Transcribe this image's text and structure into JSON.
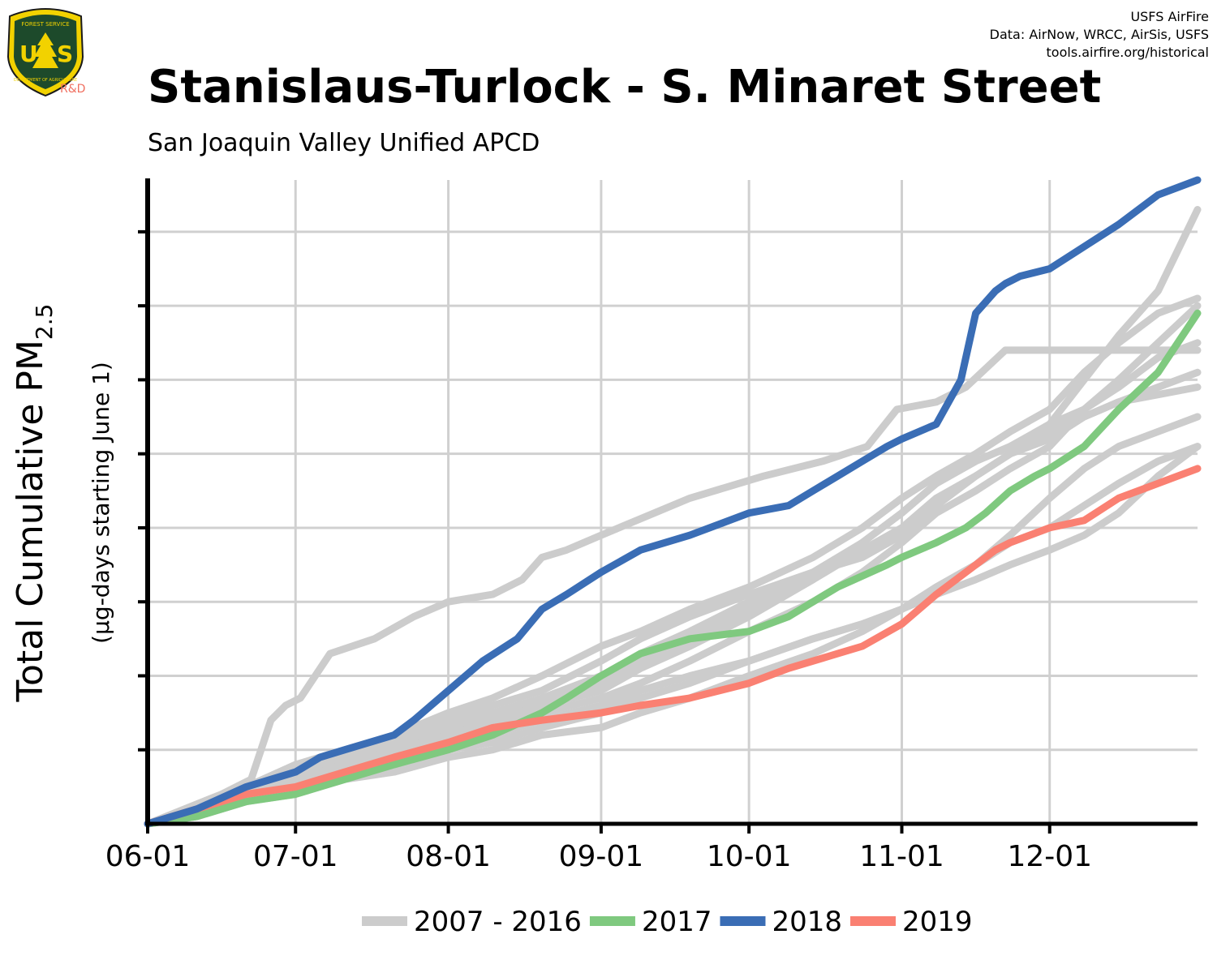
{
  "logo": {
    "text_top": "FOREST SERVICE",
    "text_main": "US",
    "text_bottom": "DEPARTMENT OF AGRICULTURE",
    "rd": "R&D"
  },
  "credits": {
    "line1": "USFS AirFire",
    "line2": "Data: AirNow, WRCC, AirSis, USFS",
    "line3": "tools.airfire.org/historical"
  },
  "colors": {
    "historical": "#cccccc",
    "y2017": "#7fc97f",
    "y2018": "#3a6db5",
    "y2019": "#fa8072",
    "grid": "#d0d0d0",
    "axis": "#000000"
  },
  "chart_data": {
    "type": "line",
    "title": "Stanislaus-Turlock - S. Minaret Street",
    "subtitle": "San Joaquin Valley Unified APCD",
    "ylabel_main": "Total Cumulative PM",
    "ylabel_sub": "2.5",
    "ylabel_units": "(µg-days starting June 1)",
    "x_tick_labels": [
      "06-01",
      "07-01",
      "08-01",
      "09-01",
      "10-01",
      "11-01",
      "12-01"
    ],
    "x_tick_days": [
      0,
      30,
      61,
      92,
      122,
      153,
      183
    ],
    "xlim": [
      0,
      213
    ],
    "ylim": [
      0,
      8.7
    ],
    "y_grid_values": [
      1,
      2,
      3,
      4,
      5,
      6,
      7,
      8
    ],
    "legend_position": "bottom",
    "legend": [
      {
        "label": "2007 - 2016",
        "key": "historical"
      },
      {
        "label": "2017",
        "key": "y2017"
      },
      {
        "label": "2018",
        "key": "y2018"
      },
      {
        "label": "2019",
        "key": "y2019"
      }
    ],
    "series": [
      {
        "name": "2007 - 2016",
        "group": "historical",
        "x": [
          0,
          15,
          21,
          25,
          28,
          31,
          37,
          46,
          54,
          61,
          70,
          76,
          80,
          85,
          92,
          110,
          125,
          137,
          146,
          152,
          160,
          166,
          174,
          183,
          190,
          197,
          205,
          213
        ],
        "y": [
          0,
          0.4,
          0.6,
          1.4,
          1.6,
          1.7,
          2.3,
          2.5,
          2.8,
          3.0,
          3.1,
          3.3,
          3.6,
          3.7,
          3.9,
          4.4,
          4.7,
          4.9,
          5.1,
          5.6,
          5.7,
          5.9,
          6.4,
          6.4,
          6.4,
          6.4,
          6.4,
          6.4
        ]
      },
      {
        "name": "2007 - 2016",
        "group": "historical",
        "x": [
          0,
          10,
          20,
          30,
          40,
          50,
          61,
          70,
          80,
          92,
          100,
          110,
          122,
          135,
          145,
          153,
          160,
          168,
          175,
          183,
          190,
          197,
          205,
          213
        ],
        "y": [
          0,
          0.2,
          0.5,
          0.7,
          0.9,
          1.1,
          1.4,
          1.6,
          1.8,
          2.2,
          2.5,
          2.8,
          3.1,
          3.4,
          3.6,
          3.9,
          4.3,
          4.7,
          5.0,
          5.4,
          6.0,
          6.6,
          7.2,
          8.3
        ]
      },
      {
        "name": "2007 - 2016",
        "group": "historical",
        "x": [
          0,
          10,
          20,
          30,
          40,
          50,
          61,
          70,
          80,
          92,
          100,
          110,
          122,
          135,
          145,
          153,
          160,
          168,
          175,
          183,
          190,
          197,
          205,
          213
        ],
        "y": [
          0,
          0.2,
          0.5,
          0.8,
          1.0,
          1.2,
          1.5,
          1.7,
          2.0,
          2.4,
          2.6,
          2.9,
          3.2,
          3.6,
          4.0,
          4.4,
          4.7,
          5.0,
          5.3,
          5.6,
          6.1,
          6.5,
          6.9,
          7.1
        ]
      },
      {
        "name": "2007 - 2016",
        "group": "historical",
        "x": [
          0,
          10,
          20,
          30,
          40,
          50,
          61,
          70,
          80,
          92,
          100,
          110,
          122,
          135,
          145,
          153,
          160,
          168,
          175,
          183,
          190,
          197,
          205,
          213
        ],
        "y": [
          0,
          0.2,
          0.4,
          0.7,
          0.9,
          1.1,
          1.3,
          1.5,
          1.7,
          2.0,
          2.3,
          2.6,
          3.0,
          3.4,
          3.8,
          4.2,
          4.6,
          4.9,
          5.1,
          5.4,
          5.6,
          5.9,
          6.3,
          6.5
        ]
      },
      {
        "name": "2007 - 2016",
        "group": "historical",
        "x": [
          0,
          10,
          20,
          30,
          40,
          50,
          61,
          70,
          80,
          92,
          100,
          110,
          122,
          135,
          145,
          153,
          160,
          168,
          175,
          183,
          190,
          197,
          205,
          213
        ],
        "y": [
          0,
          0.2,
          0.4,
          0.6,
          0.8,
          1.0,
          1.2,
          1.4,
          1.6,
          1.8,
          2.1,
          2.4,
          2.8,
          3.3,
          3.8,
          4.2,
          4.6,
          4.9,
          5.1,
          5.3,
          5.5,
          5.7,
          5.9,
          6.1
        ]
      },
      {
        "name": "2007 - 2016",
        "group": "historical",
        "x": [
          0,
          10,
          20,
          30,
          40,
          50,
          61,
          70,
          80,
          92,
          100,
          110,
          122,
          135,
          145,
          153,
          160,
          168,
          175,
          183,
          190,
          197,
          205,
          213
        ],
        "y": [
          0,
          0.2,
          0.4,
          0.6,
          0.8,
          1.0,
          1.2,
          1.4,
          1.6,
          1.9,
          2.2,
          2.5,
          2.9,
          3.3,
          3.7,
          4.0,
          4.4,
          4.7,
          5.0,
          5.2,
          5.5,
          5.7,
          5.8,
          5.9
        ]
      },
      {
        "name": "2007 - 2016",
        "group": "historical",
        "x": [
          0,
          10,
          20,
          30,
          40,
          50,
          61,
          70,
          80,
          92,
          100,
          110,
          122,
          135,
          145,
          153,
          160,
          168,
          175,
          183,
          190,
          197,
          205,
          213
        ],
        "y": [
          0,
          0.2,
          0.4,
          0.6,
          0.8,
          1.0,
          1.2,
          1.3,
          1.5,
          1.7,
          1.9,
          2.2,
          2.6,
          3.0,
          3.4,
          3.8,
          4.2,
          4.5,
          4.8,
          5.1,
          5.6,
          6.0,
          6.5,
          7.0
        ]
      },
      {
        "name": "2007 - 2016",
        "group": "historical",
        "x": [
          0,
          10,
          20,
          30,
          40,
          50,
          61,
          70,
          80,
          92,
          100,
          110,
          122,
          135,
          145,
          153,
          160,
          168,
          175,
          183,
          190,
          197,
          205,
          213
        ],
        "y": [
          0,
          0.1,
          0.3,
          0.5,
          0.7,
          0.8,
          1.0,
          1.1,
          1.3,
          1.5,
          1.7,
          1.9,
          2.2,
          2.5,
          2.7,
          2.9,
          3.2,
          3.5,
          3.9,
          4.4,
          4.8,
          5.1,
          5.3,
          5.5
        ]
      },
      {
        "name": "2007 - 2016",
        "group": "historical",
        "x": [
          0,
          10,
          20,
          30,
          40,
          50,
          61,
          70,
          80,
          92,
          100,
          110,
          122,
          135,
          145,
          153,
          160,
          168,
          175,
          183,
          190,
          197,
          205,
          213
        ],
        "y": [
          0,
          0.1,
          0.3,
          0.5,
          0.7,
          0.8,
          1.0,
          1.2,
          1.4,
          1.6,
          1.8,
          2.0,
          2.2,
          2.5,
          2.7,
          2.9,
          3.2,
          3.5,
          3.8,
          4.0,
          4.3,
          4.6,
          4.9,
          5.1
        ]
      },
      {
        "name": "2007 - 2016",
        "group": "historical",
        "x": [
          0,
          10,
          20,
          30,
          40,
          50,
          61,
          70,
          80,
          92,
          100,
          110,
          122,
          135,
          145,
          153,
          160,
          168,
          175,
          183,
          190,
          197,
          205,
          213
        ],
        "y": [
          0,
          0.1,
          0.3,
          0.4,
          0.6,
          0.7,
          0.9,
          1.0,
          1.2,
          1.3,
          1.5,
          1.7,
          2.0,
          2.3,
          2.6,
          2.9,
          3.1,
          3.3,
          3.5,
          3.7,
          3.9,
          4.2,
          4.7,
          5.1
        ]
      },
      {
        "name": "2017",
        "group": "y2017",
        "x": [
          0,
          10,
          20,
          30,
          40,
          50,
          61,
          70,
          80,
          85,
          92,
          100,
          110,
          122,
          130,
          135,
          140,
          150,
          153,
          160,
          166,
          170,
          175,
          180,
          183,
          190,
          197,
          205,
          213
        ],
        "y": [
          0,
          0.1,
          0.3,
          0.4,
          0.6,
          0.8,
          1.0,
          1.2,
          1.5,
          1.7,
          2.0,
          2.3,
          2.5,
          2.6,
          2.8,
          3.0,
          3.2,
          3.5,
          3.6,
          3.8,
          4.0,
          4.2,
          4.5,
          4.7,
          4.8,
          5.1,
          5.6,
          6.1,
          6.9
        ]
      },
      {
        "name": "2018",
        "group": "y2018",
        "x": [
          0,
          10,
          20,
          30,
          35,
          40,
          50,
          54,
          61,
          68,
          75,
          80,
          85,
          92,
          100,
          110,
          122,
          130,
          135,
          140,
          145,
          150,
          153,
          160,
          165,
          168,
          172,
          174,
          177,
          183,
          190,
          197,
          205,
          213
        ],
        "y": [
          0,
          0.2,
          0.5,
          0.7,
          0.9,
          1.0,
          1.2,
          1.4,
          1.8,
          2.2,
          2.5,
          2.9,
          3.1,
          3.4,
          3.7,
          3.9,
          4.2,
          4.3,
          4.5,
          4.7,
          4.9,
          5.1,
          5.2,
          5.4,
          6.0,
          6.9,
          7.2,
          7.3,
          7.4,
          7.5,
          7.8,
          8.1,
          8.5,
          8.7
        ]
      },
      {
        "name": "2019",
        "group": "y2019",
        "x": [
          0,
          10,
          20,
          30,
          40,
          50,
          61,
          70,
          80,
          92,
          100,
          110,
          122,
          130,
          140,
          145,
          153,
          160,
          166,
          172,
          175,
          183,
          190,
          197,
          205,
          213
        ],
        "y": [
          0,
          0.2,
          0.4,
          0.5,
          0.7,
          0.9,
          1.1,
          1.3,
          1.4,
          1.5,
          1.6,
          1.7,
          1.9,
          2.1,
          2.3,
          2.4,
          2.7,
          3.1,
          3.4,
          3.7,
          3.8,
          4.0,
          4.1,
          4.4,
          4.6,
          4.8
        ]
      }
    ]
  }
}
